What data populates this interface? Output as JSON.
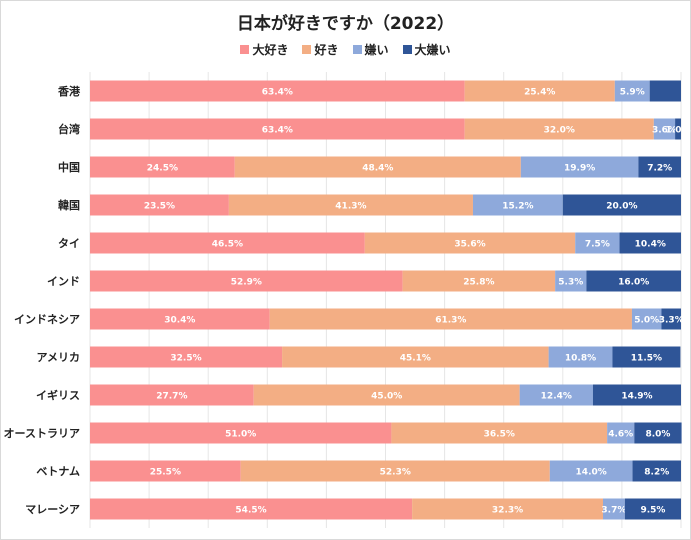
{
  "chart_data": {
    "type": "bar",
    "orientation": "horizontal",
    "stacked": "percent",
    "title": "日本が好きですか（2022）",
    "legend_position": "top",
    "categories": [
      "香港",
      "台湾",
      "中国",
      "韓国",
      "タイ",
      "インド",
      "インドネシア",
      "アメリカ",
      "イギリス",
      "オーストラリア",
      "ベトナム",
      "マレーシア"
    ],
    "series": [
      {
        "name": "大好き",
        "color": "#fa9090",
        "values": [
          63.4,
          63.4,
          24.5,
          23.5,
          46.5,
          52.9,
          30.4,
          32.5,
          27.7,
          51.0,
          25.5,
          54.5
        ]
      },
      {
        "name": "好き",
        "color": "#f3ae84",
        "values": [
          25.4,
          32.0,
          48.4,
          41.3,
          35.6,
          25.8,
          61.3,
          45.1,
          45.0,
          36.5,
          52.3,
          32.3
        ]
      },
      {
        "name": "嫌い",
        "color": "#8ea9db",
        "values": [
          5.9,
          3.6,
          19.9,
          15.2,
          7.5,
          5.3,
          5.0,
          10.8,
          12.4,
          4.6,
          14.0,
          3.7
        ]
      },
      {
        "name": "大嫌い",
        "color": "#2f5597",
        "values": [
          5.3,
          1.0,
          7.2,
          20.0,
          10.4,
          16.0,
          3.3,
          11.5,
          14.9,
          8.0,
          8.2,
          9.5
        ]
      }
    ],
    "hidden_labels": [
      [
        0,
        3
      ]
    ],
    "xlim": [
      0,
      100
    ],
    "grid": "vertical"
  }
}
